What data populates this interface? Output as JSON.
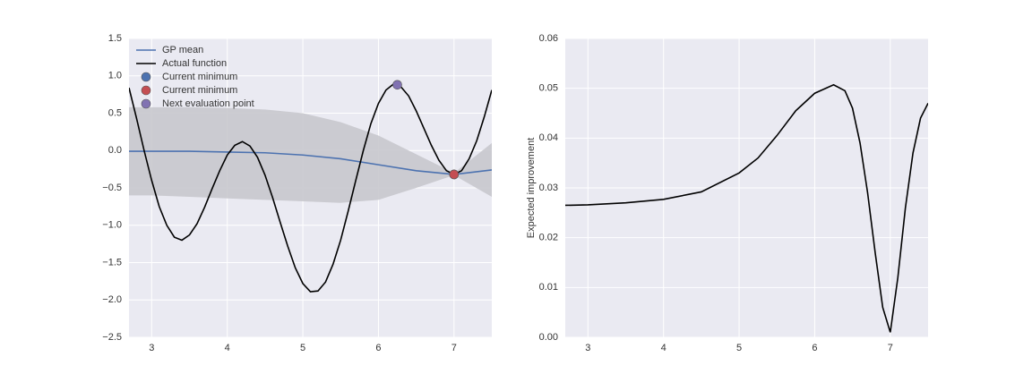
{
  "chart_data": [
    {
      "type": "line",
      "xlim": [
        2.7,
        7.5
      ],
      "xticks": [
        3,
        4,
        5,
        6,
        7
      ],
      "ylim": [
        -2.5,
        1.5
      ],
      "yticks": [
        {
          "value": -2.5,
          "label": "−2.5"
        },
        {
          "value": -2.0,
          "label": "−2.0"
        },
        {
          "value": -1.5,
          "label": "−1.5"
        },
        {
          "value": -1.0,
          "label": "−1.0"
        },
        {
          "value": -0.5,
          "label": "−0.5"
        },
        {
          "value": 0.0,
          "label": "0.0"
        },
        {
          "value": 0.5,
          "label": "0.5"
        },
        {
          "value": 1.0,
          "label": "1.0"
        },
        {
          "value": 1.5,
          "label": "1.5"
        }
      ],
      "grid": true,
      "legend": "upper left",
      "band": {
        "color": "#c8c8cd",
        "x": [
          2.7,
          3.0,
          3.5,
          4.0,
          4.5,
          5.0,
          5.5,
          6.0,
          6.5,
          7.0,
          7.5
        ],
        "upper": [
          0.58,
          0.58,
          0.58,
          0.57,
          0.55,
          0.5,
          0.38,
          0.2,
          -0.05,
          -0.3,
          0.1
        ],
        "lower": [
          -0.6,
          -0.6,
          -0.62,
          -0.64,
          -0.66,
          -0.68,
          -0.7,
          -0.66,
          -0.5,
          -0.33,
          -0.62
        ]
      },
      "series": [
        {
          "name": "GP mean",
          "mode": "line",
          "color": "#4c72b0",
          "x": [
            2.7,
            3.0,
            3.5,
            4.0,
            4.5,
            5.0,
            5.5,
            6.0,
            6.5,
            7.0,
            7.5
          ],
          "values": [
            -0.01,
            -0.01,
            -0.01,
            -0.02,
            -0.03,
            -0.06,
            -0.11,
            -0.19,
            -0.27,
            -0.32,
            -0.26
          ]
        },
        {
          "name": "Actual function",
          "mode": "line",
          "color": "#000000",
          "x": [
            2.7,
            2.8,
            2.9,
            3.0,
            3.1,
            3.2,
            3.3,
            3.4,
            3.5,
            3.6,
            3.7,
            3.8,
            3.9,
            4.0,
            4.1,
            4.2,
            4.3,
            4.4,
            4.5,
            4.6,
            4.7,
            4.8,
            4.9,
            5.0,
            5.1,
            5.2,
            5.3,
            5.4,
            5.5,
            5.6,
            5.7,
            5.8,
            5.9,
            6.0,
            6.1,
            6.2,
            6.3,
            6.4,
            6.5,
            6.6,
            6.7,
            6.8,
            6.9,
            7.0,
            7.1,
            7.2,
            7.3,
            7.4,
            7.5
          ],
          "values": [
            0.84,
            0.43,
            0.0,
            -0.4,
            -0.75,
            -1.0,
            -1.16,
            -1.2,
            -1.13,
            -0.98,
            -0.76,
            -0.51,
            -0.27,
            -0.06,
            0.07,
            0.12,
            0.06,
            -0.09,
            -0.33,
            -0.63,
            -0.96,
            -1.28,
            -1.57,
            -1.78,
            -1.89,
            -1.88,
            -1.76,
            -1.52,
            -1.2,
            -0.81,
            -0.4,
            0.0,
            0.36,
            0.63,
            0.81,
            0.89,
            0.85,
            0.73,
            0.53,
            0.3,
            0.07,
            -0.13,
            -0.27,
            -0.32,
            -0.27,
            -0.11,
            0.13,
            0.45,
            0.81
          ]
        },
        {
          "name": "Current minimum",
          "mode": "markers",
          "color": "#4c72b0",
          "x": [
            7.0
          ],
          "values": [
            -0.32
          ]
        },
        {
          "name": "Current minimum",
          "mode": "markers",
          "color": "#c44e52",
          "x": [
            7.0
          ],
          "values": [
            -0.32
          ]
        },
        {
          "name": "Next evaluation point",
          "mode": "markers",
          "color": "#8172b2",
          "x": [
            6.25
          ],
          "values": [
            0.88
          ]
        }
      ]
    },
    {
      "type": "line",
      "ylabel": "Expected improvement",
      "xlim": [
        2.7,
        7.5
      ],
      "xticks": [
        3,
        4,
        5,
        6,
        7
      ],
      "ylim": [
        0,
        0.06
      ],
      "yticks": [
        {
          "value": 0,
          "label": "0.00"
        },
        {
          "value": 0.01,
          "label": "0.01"
        },
        {
          "value": 0.02,
          "label": "0.02"
        },
        {
          "value": 0.03,
          "label": "0.03"
        },
        {
          "value": 0.04,
          "label": "0.04"
        },
        {
          "value": 0.05,
          "label": "0.05"
        },
        {
          "value": 0.06,
          "label": "0.06"
        }
      ],
      "grid": true,
      "series": [
        {
          "mode": "line",
          "color": "#000000",
          "x": [
            2.7,
            3.0,
            3.5,
            4.0,
            4.5,
            5.0,
            5.25,
            5.5,
            5.75,
            6.0,
            6.25,
            6.4,
            6.5,
            6.6,
            6.7,
            6.8,
            6.9,
            7.0,
            7.1,
            7.2,
            7.3,
            7.4,
            7.5
          ],
          "values": [
            0.0265,
            0.0266,
            0.027,
            0.0277,
            0.0292,
            0.033,
            0.036,
            0.0405,
            0.0455,
            0.049,
            0.0507,
            0.0495,
            0.046,
            0.039,
            0.029,
            0.017,
            0.006,
            0.001,
            0.012,
            0.026,
            0.037,
            0.044,
            0.047
          ]
        }
      ]
    }
  ]
}
